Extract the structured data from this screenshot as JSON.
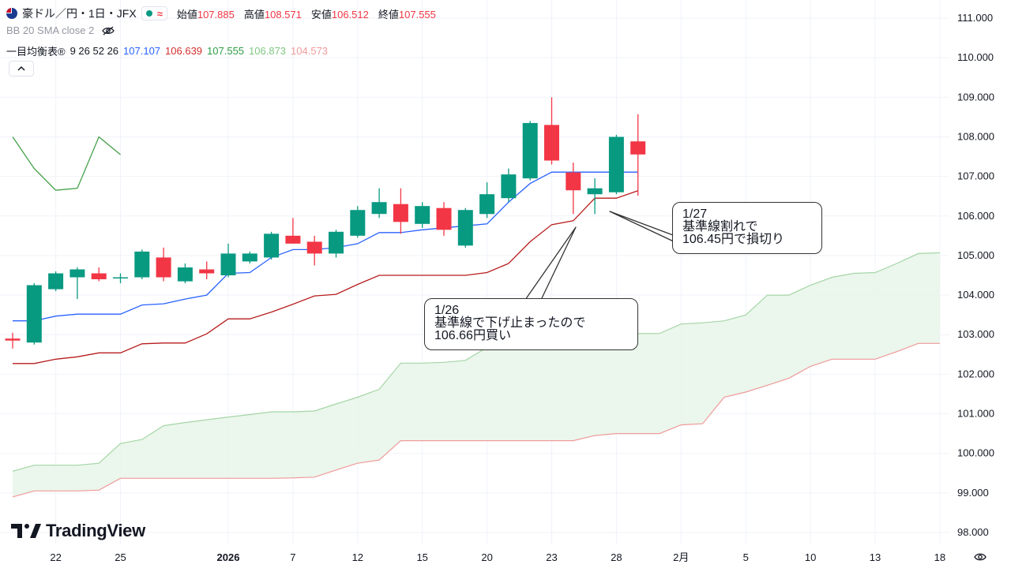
{
  "header": {
    "symbol": "豪ドル／円・1日・JFX",
    "wave_icon": "≈",
    "ohlc": [
      {
        "label": "始値",
        "value": "107.885"
      },
      {
        "label": "高値",
        "value": "108.571"
      },
      {
        "label": "安値",
        "value": "106.512"
      },
      {
        "label": "終値",
        "value": "107.555"
      }
    ]
  },
  "indicators": {
    "bb": {
      "label": "BB 20 SMA close 2",
      "icon": "eye-off-icon"
    },
    "ichimoku": {
      "label": "一目均衡表®",
      "params": "9 26 52 26",
      "values": [
        {
          "value": "107.107",
          "color": "#2962ff"
        },
        {
          "value": "106.639",
          "color": "#d32f2f"
        },
        {
          "value": "107.555",
          "color": "#2e9d44"
        },
        {
          "value": "106.873",
          "color": "#81c784"
        },
        {
          "value": "104.573",
          "color": "#ef9a9a"
        }
      ]
    }
  },
  "collapse_icon": "chevron-up-icon",
  "logo": {
    "text": "TradingView"
  },
  "callouts": [
    {
      "lines": [
        "1/27",
        "基準線割れで",
        "106.45円で損切り"
      ]
    },
    {
      "lines": [
        "1/26",
        "基準線で下げ止まったので",
        "106.66円買い"
      ]
    }
  ],
  "chart_data": {
    "type": "candlestick",
    "colors": {
      "up": "#089981",
      "down": "#f23645",
      "tenkan": "#2962ff",
      "kijun": "#b71c1c",
      "chikou": "#43a047",
      "span_a": "#a5d6a7",
      "span_b": "#ef9a9a",
      "cloud": "#e8f5e9"
    },
    "ylim": [
      97.8,
      111.3
    ],
    "y_ticks": [
      "111.000",
      "110.000",
      "109.000",
      "108.000",
      "107.000",
      "106.000",
      "105.000",
      "104.000",
      "103.000",
      "102.000",
      "101.000",
      "100.000",
      "99.000",
      "98.000"
    ],
    "x_ticks": [
      {
        "label": "22",
        "i": 2
      },
      {
        "label": "25",
        "i": 5
      },
      {
        "label": "2026",
        "i": 10
      },
      {
        "label": "7",
        "i": 13
      },
      {
        "label": "12",
        "i": 16
      },
      {
        "label": "15",
        "i": 19
      },
      {
        "label": "20",
        "i": 22
      },
      {
        "label": "23",
        "i": 25
      },
      {
        "label": "28",
        "i": 28
      },
      {
        "label": "2月",
        "i": 31
      },
      {
        "label": "5",
        "i": 34
      },
      {
        "label": "10",
        "i": 37
      },
      {
        "label": "13",
        "i": 40
      },
      {
        "label": "18",
        "i": 43
      }
    ],
    "candles": [
      {
        "o": 102.9,
        "h": 103.05,
        "l": 102.65,
        "c": 102.85
      },
      {
        "o": 102.8,
        "h": 104.3,
        "l": 102.75,
        "c": 104.25
      },
      {
        "o": 104.15,
        "h": 104.6,
        "l": 104.1,
        "c": 104.55
      },
      {
        "o": 104.45,
        "h": 104.7,
        "l": 103.9,
        "c": 104.65
      },
      {
        "o": 104.55,
        "h": 104.7,
        "l": 104.35,
        "c": 104.4
      },
      {
        "o": 104.45,
        "h": 104.55,
        "l": 104.3,
        "c": 104.45
      },
      {
        "o": 104.45,
        "h": 105.15,
        "l": 104.4,
        "c": 105.1
      },
      {
        "o": 104.95,
        "h": 105.2,
        "l": 104.35,
        "c": 104.45
      },
      {
        "o": 104.35,
        "h": 104.8,
        "l": 104.3,
        "c": 104.7
      },
      {
        "o": 104.65,
        "h": 104.85,
        "l": 104.4,
        "c": 104.55
      },
      {
        "o": 104.5,
        "h": 105.3,
        "l": 104.45,
        "c": 105.05
      },
      {
        "o": 104.85,
        "h": 105.1,
        "l": 104.8,
        "c": 105.05
      },
      {
        "o": 104.95,
        "h": 105.6,
        "l": 104.9,
        "c": 105.55
      },
      {
        "o": 105.5,
        "h": 105.95,
        "l": 105.3,
        "c": 105.3
      },
      {
        "o": 105.35,
        "h": 105.5,
        "l": 104.75,
        "c": 105.05
      },
      {
        "o": 105.05,
        "h": 105.65,
        "l": 104.95,
        "c": 105.6
      },
      {
        "o": 105.5,
        "h": 106.25,
        "l": 105.45,
        "c": 106.15
      },
      {
        "o": 106.05,
        "h": 106.7,
        "l": 105.95,
        "c": 106.35
      },
      {
        "o": 106.3,
        "h": 106.7,
        "l": 105.55,
        "c": 105.85
      },
      {
        "o": 105.8,
        "h": 106.35,
        "l": 105.7,
        "c": 106.25
      },
      {
        "o": 106.2,
        "h": 106.35,
        "l": 105.5,
        "c": 105.65
      },
      {
        "o": 105.25,
        "h": 106.2,
        "l": 105.2,
        "c": 106.15
      },
      {
        "o": 106.05,
        "h": 106.85,
        "l": 105.95,
        "c": 106.55
      },
      {
        "o": 106.45,
        "h": 107.2,
        "l": 106.35,
        "c": 107.05
      },
      {
        "o": 106.95,
        "h": 108.4,
        "l": 106.9,
        "c": 108.35
      },
      {
        "o": 108.3,
        "h": 109.0,
        "l": 107.3,
        "c": 107.4
      },
      {
        "o": 107.1,
        "h": 107.35,
        "l": 106.05,
        "c": 106.65
      },
      {
        "o": 106.55,
        "h": 106.95,
        "l": 106.05,
        "c": 106.7
      },
      {
        "o": 106.6,
        "h": 108.05,
        "l": 106.55,
        "c": 108.0
      },
      {
        "o": 107.885,
        "h": 108.571,
        "l": 106.512,
        "c": 107.555
      }
    ],
    "tenkan": [
      {
        "i": 0,
        "v": 103.35
      },
      {
        "i": 1,
        "v": 103.35
      },
      {
        "i": 2,
        "v": 103.47
      },
      {
        "i": 3,
        "v": 103.52
      },
      {
        "i": 4,
        "v": 103.52
      },
      {
        "i": 5,
        "v": 103.52
      },
      {
        "i": 6,
        "v": 103.75
      },
      {
        "i": 7,
        "v": 103.78
      },
      {
        "i": 8,
        "v": 103.9
      },
      {
        "i": 9,
        "v": 104.0
      },
      {
        "i": 10,
        "v": 104.55
      },
      {
        "i": 11,
        "v": 104.57
      },
      {
        "i": 12,
        "v": 104.95
      },
      {
        "i": 13,
        "v": 105.15
      },
      {
        "i": 14,
        "v": 105.15
      },
      {
        "i": 15,
        "v": 105.2
      },
      {
        "i": 16,
        "v": 105.3
      },
      {
        "i": 17,
        "v": 105.58
      },
      {
        "i": 18,
        "v": 105.58
      },
      {
        "i": 19,
        "v": 105.65
      },
      {
        "i": 20,
        "v": 105.7
      },
      {
        "i": 21,
        "v": 105.75
      },
      {
        "i": 22,
        "v": 105.8
      },
      {
        "i": 23,
        "v": 106.35
      },
      {
        "i": 24,
        "v": 106.82
      },
      {
        "i": 25,
        "v": 107.107
      },
      {
        "i": 26,
        "v": 107.107
      },
      {
        "i": 27,
        "v": 107.107
      },
      {
        "i": 28,
        "v": 107.107
      },
      {
        "i": 29,
        "v": 107.107
      }
    ],
    "kijun": [
      {
        "i": 0,
        "v": 102.27
      },
      {
        "i": 1,
        "v": 102.27
      },
      {
        "i": 2,
        "v": 102.38
      },
      {
        "i": 3,
        "v": 102.44
      },
      {
        "i": 4,
        "v": 102.54
      },
      {
        "i": 5,
        "v": 102.54
      },
      {
        "i": 6,
        "v": 102.77
      },
      {
        "i": 7,
        "v": 102.79
      },
      {
        "i": 8,
        "v": 102.79
      },
      {
        "i": 9,
        "v": 103.02
      },
      {
        "i": 10,
        "v": 103.4
      },
      {
        "i": 11,
        "v": 103.4
      },
      {
        "i": 12,
        "v": 103.57
      },
      {
        "i": 13,
        "v": 103.77
      },
      {
        "i": 14,
        "v": 103.98
      },
      {
        "i": 15,
        "v": 104.02
      },
      {
        "i": 16,
        "v": 104.27
      },
      {
        "i": 17,
        "v": 104.5
      },
      {
        "i": 18,
        "v": 104.5
      },
      {
        "i": 19,
        "v": 104.5
      },
      {
        "i": 20,
        "v": 104.5
      },
      {
        "i": 21,
        "v": 104.5
      },
      {
        "i": 22,
        "v": 104.57
      },
      {
        "i": 23,
        "v": 104.8
      },
      {
        "i": 24,
        "v": 105.35
      },
      {
        "i": 25,
        "v": 105.78
      },
      {
        "i": 26,
        "v": 105.88
      },
      {
        "i": 27,
        "v": 106.45
      },
      {
        "i": 28,
        "v": 106.45
      },
      {
        "i": 29,
        "v": 106.639
      }
    ],
    "chikou": [
      {
        "i": 0,
        "v": 108.0
      },
      {
        "i": 1,
        "v": 107.2
      },
      {
        "i": 2,
        "v": 106.65
      },
      {
        "i": 3,
        "v": 106.7
      },
      {
        "i": 4,
        "v": 108.0
      },
      {
        "i": 5,
        "v": 107.55
      }
    ],
    "span_a": [
      {
        "i": 0,
        "v": 99.55
      },
      {
        "i": 1,
        "v": 99.7
      },
      {
        "i": 2,
        "v": 99.7
      },
      {
        "i": 3,
        "v": 99.7
      },
      {
        "i": 4,
        "v": 99.75
      },
      {
        "i": 5,
        "v": 100.25
      },
      {
        "i": 6,
        "v": 100.35
      },
      {
        "i": 7,
        "v": 100.7
      },
      {
        "i": 8,
        "v": 100.78
      },
      {
        "i": 9,
        "v": 100.85
      },
      {
        "i": 10,
        "v": 100.92
      },
      {
        "i": 11,
        "v": 100.98
      },
      {
        "i": 12,
        "v": 101.05
      },
      {
        "i": 13,
        "v": 101.05
      },
      {
        "i": 14,
        "v": 101.07
      },
      {
        "i": 15,
        "v": 101.25
      },
      {
        "i": 16,
        "v": 101.42
      },
      {
        "i": 17,
        "v": 101.62
      },
      {
        "i": 18,
        "v": 102.28
      },
      {
        "i": 19,
        "v": 102.28
      },
      {
        "i": 20,
        "v": 102.3
      },
      {
        "i": 21,
        "v": 102.35
      },
      {
        "i": 22,
        "v": 102.68
      },
      {
        "i": 23,
        "v": 102.82
      },
      {
        "i": 24,
        "v": 102.85
      },
      {
        "i": 25,
        "v": 102.85
      },
      {
        "i": 26,
        "v": 102.85
      },
      {
        "i": 27,
        "v": 102.95
      },
      {
        "i": 28,
        "v": 103.0
      },
      {
        "i": 29,
        "v": 103.03
      },
      {
        "i": 30,
        "v": 103.03
      },
      {
        "i": 31,
        "v": 103.27
      },
      {
        "i": 32,
        "v": 103.3
      },
      {
        "i": 33,
        "v": 103.35
      },
      {
        "i": 34,
        "v": 103.5
      },
      {
        "i": 35,
        "v": 104.0
      },
      {
        "i": 36,
        "v": 104.0
      },
      {
        "i": 37,
        "v": 104.25
      },
      {
        "i": 38,
        "v": 104.45
      },
      {
        "i": 39,
        "v": 104.55
      },
      {
        "i": 40,
        "v": 104.57
      },
      {
        "i": 41,
        "v": 104.8
      },
      {
        "i": 42,
        "v": 105.05
      },
      {
        "i": 43,
        "v": 105.07
      }
    ],
    "span_b": [
      {
        "i": 0,
        "v": 98.9
      },
      {
        "i": 1,
        "v": 99.05
      },
      {
        "i": 2,
        "v": 99.05
      },
      {
        "i": 3,
        "v": 99.05
      },
      {
        "i": 4,
        "v": 99.07
      },
      {
        "i": 5,
        "v": 99.37
      },
      {
        "i": 6,
        "v": 99.37
      },
      {
        "i": 7,
        "v": 99.37
      },
      {
        "i": 8,
        "v": 99.37
      },
      {
        "i": 9,
        "v": 99.37
      },
      {
        "i": 10,
        "v": 99.37
      },
      {
        "i": 11,
        "v": 99.37
      },
      {
        "i": 12,
        "v": 99.37
      },
      {
        "i": 13,
        "v": 99.38
      },
      {
        "i": 14,
        "v": 99.4
      },
      {
        "i": 15,
        "v": 99.58
      },
      {
        "i": 16,
        "v": 99.75
      },
      {
        "i": 17,
        "v": 99.83
      },
      {
        "i": 18,
        "v": 100.32
      },
      {
        "i": 19,
        "v": 100.32
      },
      {
        "i": 20,
        "v": 100.32
      },
      {
        "i": 21,
        "v": 100.32
      },
      {
        "i": 22,
        "v": 100.32
      },
      {
        "i": 23,
        "v": 100.32
      },
      {
        "i": 24,
        "v": 100.32
      },
      {
        "i": 25,
        "v": 100.32
      },
      {
        "i": 26,
        "v": 100.32
      },
      {
        "i": 27,
        "v": 100.45
      },
      {
        "i": 28,
        "v": 100.5
      },
      {
        "i": 29,
        "v": 100.5
      },
      {
        "i": 30,
        "v": 100.5
      },
      {
        "i": 31,
        "v": 100.72
      },
      {
        "i": 32,
        "v": 100.75
      },
      {
        "i": 33,
        "v": 101.42
      },
      {
        "i": 34,
        "v": 101.55
      },
      {
        "i": 35,
        "v": 101.72
      },
      {
        "i": 36,
        "v": 101.9
      },
      {
        "i": 37,
        "v": 102.2
      },
      {
        "i": 38,
        "v": 102.38
      },
      {
        "i": 39,
        "v": 102.38
      },
      {
        "i": 40,
        "v": 102.38
      },
      {
        "i": 41,
        "v": 102.57
      },
      {
        "i": 42,
        "v": 102.78
      },
      {
        "i": 43,
        "v": 102.78
      }
    ]
  }
}
